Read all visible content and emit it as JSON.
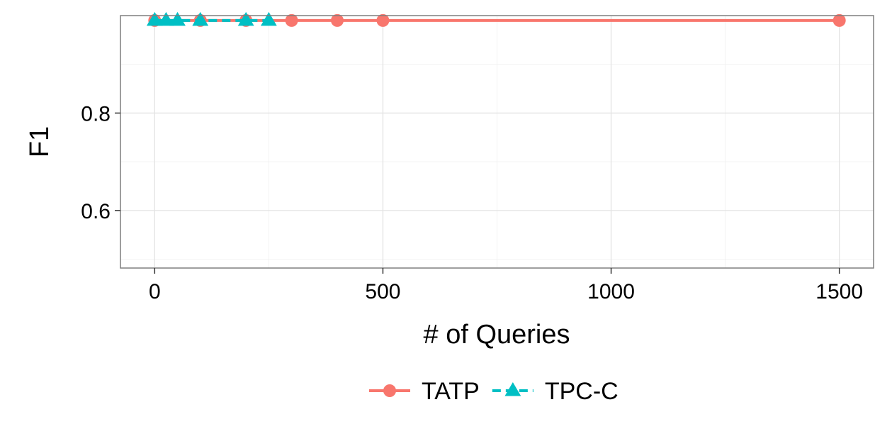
{
  "chart_data": {
    "type": "line",
    "xlabel": "# of Queries",
    "ylabel": "F1",
    "xlim": [
      -75,
      1575
    ],
    "ylim": [
      0.482,
      1.0
    ],
    "x_ticks": [
      0,
      500,
      1000,
      1500
    ],
    "x_tick_labels": [
      "0",
      "500",
      "1000",
      "1500"
    ],
    "x_minor_ticks": [
      250,
      750,
      1250
    ],
    "y_ticks": [
      0.6,
      0.8
    ],
    "y_tick_labels": [
      "0.6",
      "0.8"
    ],
    "y_minor_ticks": [
      0.5,
      0.7,
      0.9
    ],
    "grid": true,
    "legend_position": "bottom",
    "series": [
      {
        "name": "TATP",
        "color": "#F8766D",
        "marker": "circle",
        "line_style": "solid",
        "x": [
          0,
          100,
          200,
          300,
          400,
          500,
          1500
        ],
        "y": [
          0.99,
          0.99,
          0.99,
          0.99,
          0.99,
          0.99,
          0.99
        ]
      },
      {
        "name": "TPC-C",
        "color": "#00BFC4",
        "marker": "triangle",
        "line_style": "dashed",
        "x": [
          0,
          25,
          50,
          100,
          200,
          250
        ],
        "y": [
          0.99,
          0.99,
          0.99,
          0.99,
          0.99,
          0.99
        ]
      }
    ]
  }
}
